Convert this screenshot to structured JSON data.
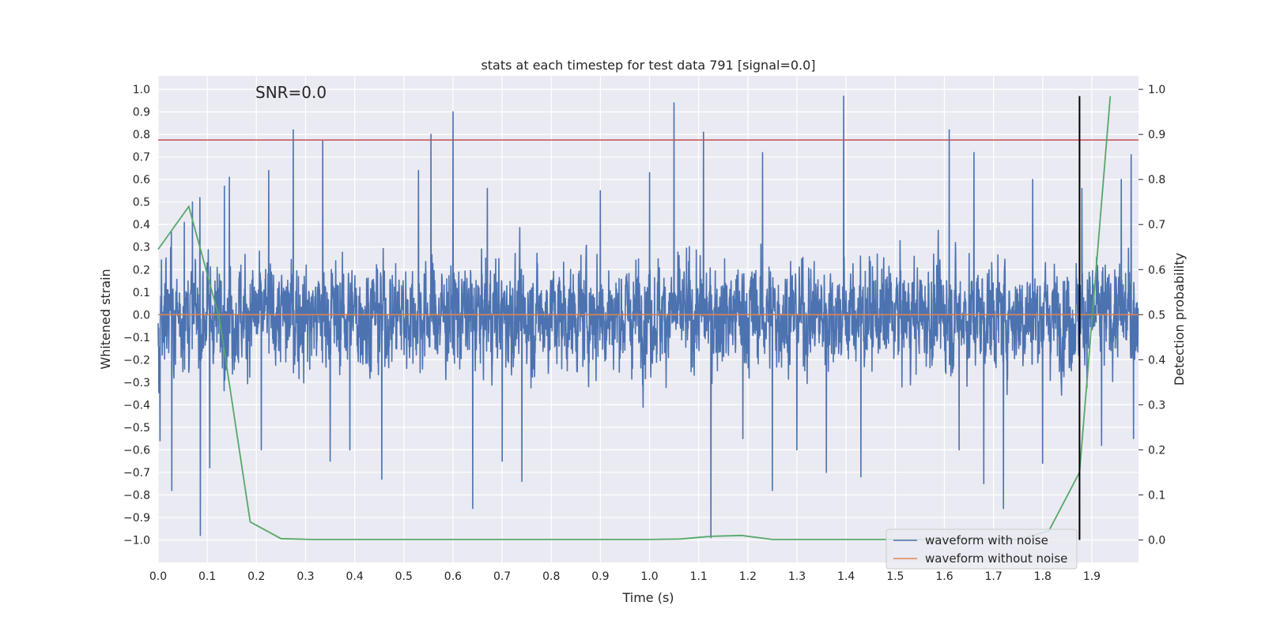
{
  "chart_data": {
    "type": "line",
    "title": "stats at each timestep for test data 791 [signal=0.0]",
    "xlabel": "Time (s)",
    "ylabel": "Whitened strain",
    "y2label": "Detection probability",
    "xlim": [
      0.0,
      1.995
    ],
    "ylim": [
      -1.1,
      1.06
    ],
    "y2lim": [
      -0.05,
      1.03
    ],
    "xticks": [
      "0.0",
      "0.1",
      "0.2",
      "0.3",
      "0.4",
      "0.5",
      "0.6",
      "0.7",
      "0.8",
      "0.9",
      "1.0",
      "1.1",
      "1.2",
      "1.3",
      "1.4",
      "1.5",
      "1.6",
      "1.7",
      "1.8",
      "1.9"
    ],
    "yticks": [
      "1.0",
      "0.9",
      "0.8",
      "0.7",
      "0.6",
      "0.5",
      "0.4",
      "0.3",
      "0.2",
      "0.1",
      "0.0",
      "−0.1",
      "−0.2",
      "−0.3",
      "−0.4",
      "−0.5",
      "−0.6",
      "−0.7",
      "−0.8",
      "−0.9",
      "−1.0"
    ],
    "y2ticks": [
      "1.0",
      "0.9",
      "0.8",
      "0.7",
      "0.6",
      "0.5",
      "0.4",
      "0.3",
      "0.2",
      "0.1",
      "0.0"
    ],
    "grid": true,
    "legend_placement": "bottom-right",
    "annotation": "SNR=0.0",
    "threshold_line": {
      "y": 0.775,
      "color": "#c44e52"
    },
    "vertical_marker": {
      "x": 1.875,
      "y_range": [
        -1.0,
        0.97
      ],
      "color": "#000000"
    },
    "series": [
      {
        "name": "waveform with noise",
        "axis": "left",
        "color": "#4c72b0",
        "sample_rate": 2048,
        "noise_std": 0.24,
        "spikes": [
          {
            "x": 0.004,
            "y": -0.56
          },
          {
            "x": 0.027,
            "y": 0.37
          },
          {
            "x": 0.028,
            "y": -0.78
          },
          {
            "x": 0.053,
            "y": 0.41
          },
          {
            "x": 0.07,
            "y": 0.5
          },
          {
            "x": 0.085,
            "y": 0.52
          },
          {
            "x": 0.086,
            "y": -0.98
          },
          {
            "x": 0.105,
            "y": -0.68
          },
          {
            "x": 0.135,
            "y": 0.57
          },
          {
            "x": 0.145,
            "y": 0.61
          },
          {
            "x": 0.21,
            "y": -0.6
          },
          {
            "x": 0.225,
            "y": 0.64
          },
          {
            "x": 0.275,
            "y": 0.82
          },
          {
            "x": 0.335,
            "y": 0.77
          },
          {
            "x": 0.35,
            "y": -0.65
          },
          {
            "x": 0.39,
            "y": -0.6
          },
          {
            "x": 0.455,
            "y": -0.73
          },
          {
            "x": 0.53,
            "y": 0.64
          },
          {
            "x": 0.555,
            "y": 0.8
          },
          {
            "x": 0.6,
            "y": 0.9
          },
          {
            "x": 0.64,
            "y": -0.86
          },
          {
            "x": 0.67,
            "y": 0.56
          },
          {
            "x": 0.7,
            "y": -0.65
          },
          {
            "x": 0.74,
            "y": -0.74
          },
          {
            "x": 0.9,
            "y": 0.55
          },
          {
            "x": 1.0,
            "y": 0.63
          },
          {
            "x": 1.05,
            "y": 0.94
          },
          {
            "x": 1.11,
            "y": 0.81
          },
          {
            "x": 1.125,
            "y": -0.99
          },
          {
            "x": 1.19,
            "y": -0.55
          },
          {
            "x": 1.23,
            "y": 0.72
          },
          {
            "x": 1.25,
            "y": -0.78
          },
          {
            "x": 1.3,
            "y": -0.6
          },
          {
            "x": 1.36,
            "y": -0.7
          },
          {
            "x": 1.395,
            "y": 0.97
          },
          {
            "x": 1.43,
            "y": -0.72
          },
          {
            "x": 1.61,
            "y": 0.82
          },
          {
            "x": 1.63,
            "y": -0.6
          },
          {
            "x": 1.66,
            "y": 0.72
          },
          {
            "x": 1.68,
            "y": -0.75
          },
          {
            "x": 1.72,
            "y": -0.86
          },
          {
            "x": 1.78,
            "y": 0.6
          },
          {
            "x": 1.8,
            "y": -0.66
          },
          {
            "x": 1.88,
            "y": 0.56
          },
          {
            "x": 1.92,
            "y": -0.58
          },
          {
            "x": 1.96,
            "y": 0.6
          },
          {
            "x": 1.98,
            "y": 0.71
          },
          {
            "x": 1.985,
            "y": -0.55
          }
        ]
      },
      {
        "name": "waveform without noise",
        "axis": "left",
        "color": "#dd8452",
        "x": [
          0.0,
          1.995
        ],
        "y": [
          0.0,
          0.0
        ]
      },
      {
        "axis": "right",
        "color": "#55a868",
        "x": [
          0.0,
          0.0625,
          0.125,
          0.1875,
          0.25,
          0.3125,
          0.375,
          0.4375,
          0.5,
          0.5625,
          0.625,
          0.6875,
          0.75,
          0.8125,
          0.875,
          0.9375,
          1.0,
          1.0625,
          1.125,
          1.1875,
          1.25,
          1.3125,
          1.375,
          1.4375,
          1.5,
          1.5625,
          1.625,
          1.6875,
          1.75,
          1.8125,
          1.875,
          1.9375
        ],
        "y": [
          0.645,
          0.74,
          0.49,
          0.04,
          0.003,
          0.001,
          0.001,
          0.001,
          0.001,
          0.001,
          0.001,
          0.001,
          0.001,
          0.001,
          0.001,
          0.001,
          0.001,
          0.002,
          0.008,
          0.01,
          0.001,
          0.001,
          0.001,
          0.001,
          0.001,
          0.001,
          0.001,
          0.001,
          0.001,
          0.02,
          0.15,
          0.985
        ]
      }
    ]
  }
}
